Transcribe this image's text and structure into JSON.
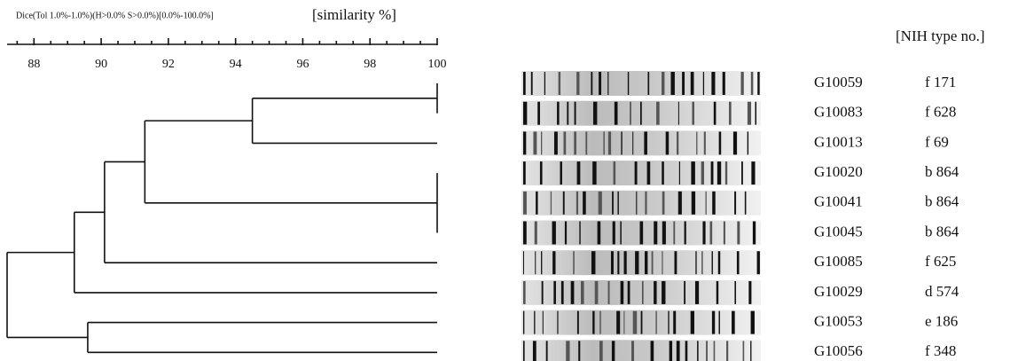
{
  "chart_data": {
    "type": "dendrogram",
    "method_note": "Dice(Tol 1.0%-1.0%)(H>0.0% S>0.0%)[0.0%-100.0%]",
    "x_label": "[similarity %]",
    "type_label": "[NIH type no.]",
    "xlim": [
      87.2,
      100
    ],
    "xticks": [
      88,
      90,
      92,
      94,
      96,
      98,
      100
    ],
    "minor_xticks": [
      87.5,
      88.5,
      89,
      89.5,
      90.5,
      91,
      91.5,
      92.5,
      93,
      93.5,
      94.5,
      95,
      95.5,
      96.5,
      97,
      97.5,
      98.5,
      99,
      99.5
    ],
    "tree": {
      "similarity": 87.2,
      "children": [
        {
          "similarity": 89.2,
          "children": [
            {
              "similarity": 90.1,
              "children": [
                {
                  "similarity": 91.3,
                  "children": [
                    {
                      "similarity": 94.5,
                      "children": [
                        {
                          "similarity": 100,
                          "children": [
                            {
                              "strain": "G10059",
                              "nih_type": "f 171"
                            },
                            {
                              "strain": "G10083",
                              "nih_type": "f 628"
                            }
                          ]
                        },
                        {
                          "strain": "G10013",
                          "nih_type": "f 69"
                        }
                      ]
                    },
                    {
                      "similarity": 100,
                      "children": [
                        {
                          "strain": "G10020",
                          "nih_type": "b 864"
                        },
                        {
                          "strain": "G10041",
                          "nih_type": "b 864"
                        },
                        {
                          "strain": "G10045",
                          "nih_type": "b 864"
                        }
                      ]
                    }
                  ]
                },
                {
                  "strain": "G10085",
                  "nih_type": "f 625"
                }
              ]
            },
            {
              "strain": "G10029",
              "nih_type": "d 574"
            }
          ]
        },
        {
          "similarity": 89.6,
          "children": [
            {
              "strain": "G10053",
              "nih_type": "e 186"
            },
            {
              "strain": "G10056",
              "nih_type": "f 348"
            }
          ]
        }
      ]
    }
  }
}
